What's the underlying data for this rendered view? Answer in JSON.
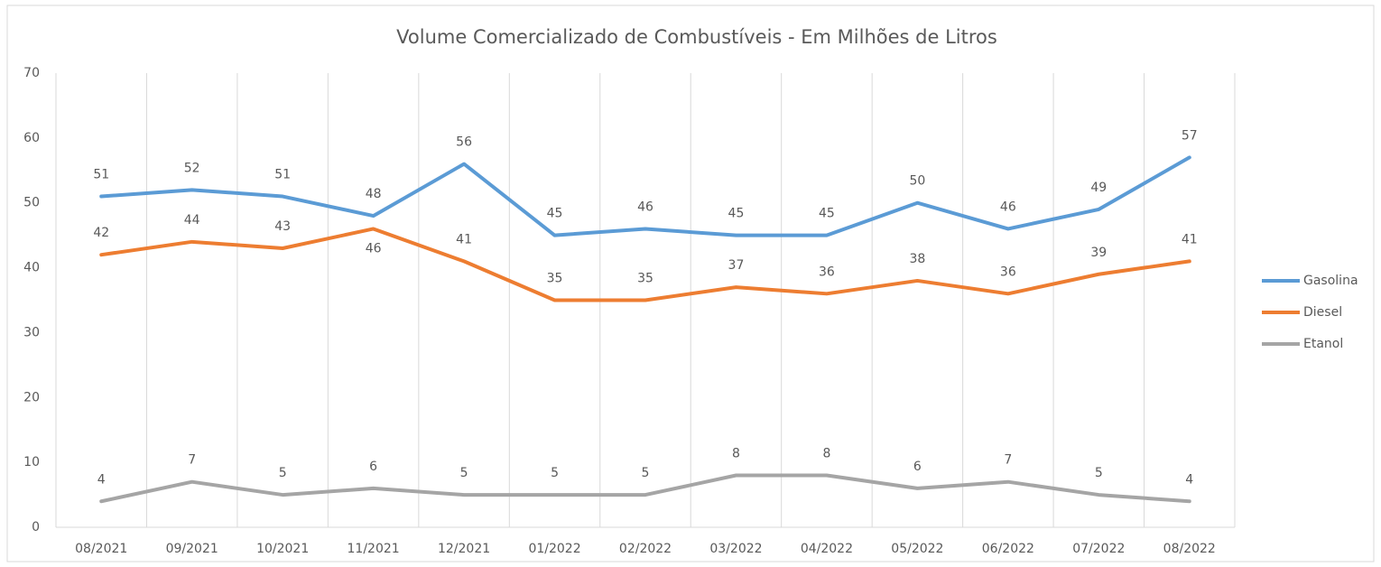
{
  "chart_data": {
    "type": "line",
    "title": "Volume Comercializado de Combustíveis - Em Milhões de Litros",
    "categories": [
      "08/2021",
      "09/2021",
      "10/2021",
      "11/2021",
      "12/2021",
      "01/2022",
      "02/2022",
      "03/2022",
      "04/2022",
      "05/2022",
      "06/2022",
      "07/2022",
      "08/2022"
    ],
    "series": [
      {
        "name": "Gasolina",
        "color": "#5b9bd5",
        "values": [
          51,
          52,
          51,
          48,
          56,
          45,
          46,
          45,
          45,
          50,
          46,
          49,
          57
        ]
      },
      {
        "name": "Diesel",
        "color": "#ed7d31",
        "values": [
          42,
          44,
          43,
          46,
          41,
          35,
          35,
          37,
          36,
          38,
          36,
          39,
          41
        ]
      },
      {
        "name": "Etanol",
        "color": "#a5a5a5",
        "values": [
          4,
          7,
          5,
          6,
          5,
          5,
          5,
          8,
          8,
          6,
          7,
          5,
          4
        ]
      }
    ],
    "ylim": [
      0,
      70
    ],
    "yticks": [
      0,
      10,
      20,
      30,
      40,
      50,
      60,
      70
    ],
    "grid": "vertical",
    "legend": "right",
    "data_labels": true
  }
}
